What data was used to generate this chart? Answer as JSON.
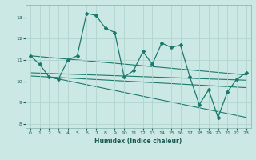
{
  "xlabel": "Humidex (Indice chaleur)",
  "background_color": "#cce8e4",
  "grid_color": "#b0d4ce",
  "line_color": "#1a7a6e",
  "xlim": [
    -0.5,
    23.5
  ],
  "ylim": [
    7.8,
    13.6
  ],
  "yticks": [
    8,
    9,
    10,
    11,
    12,
    13
  ],
  "xticks": [
    0,
    1,
    2,
    3,
    4,
    5,
    6,
    7,
    8,
    9,
    10,
    11,
    12,
    13,
    14,
    15,
    16,
    17,
    18,
    19,
    20,
    21,
    22,
    23
  ],
  "main_x": [
    0,
    1,
    2,
    3,
    4,
    5,
    6,
    7,
    8,
    9,
    10,
    11,
    12,
    13,
    14,
    15,
    16,
    17,
    18,
    19,
    20,
    21,
    22,
    23
  ],
  "main_y": [
    11.2,
    10.8,
    10.2,
    10.1,
    11.0,
    11.2,
    13.2,
    13.1,
    12.5,
    12.3,
    10.2,
    10.5,
    11.4,
    10.8,
    11.8,
    11.6,
    11.7,
    10.2,
    8.9,
    9.6,
    8.3,
    9.5,
    10.1,
    10.4
  ],
  "trend1_x": [
    0,
    23
  ],
  "trend1_y": [
    11.2,
    10.3
  ],
  "trend2_x": [
    0,
    23
  ],
  "trend2_y": [
    10.4,
    10.05
  ],
  "trend3_x": [
    0,
    23
  ],
  "trend3_y": [
    10.25,
    9.7
  ],
  "trend4_x": [
    2,
    23
  ],
  "trend4_y": [
    10.2,
    8.3
  ]
}
